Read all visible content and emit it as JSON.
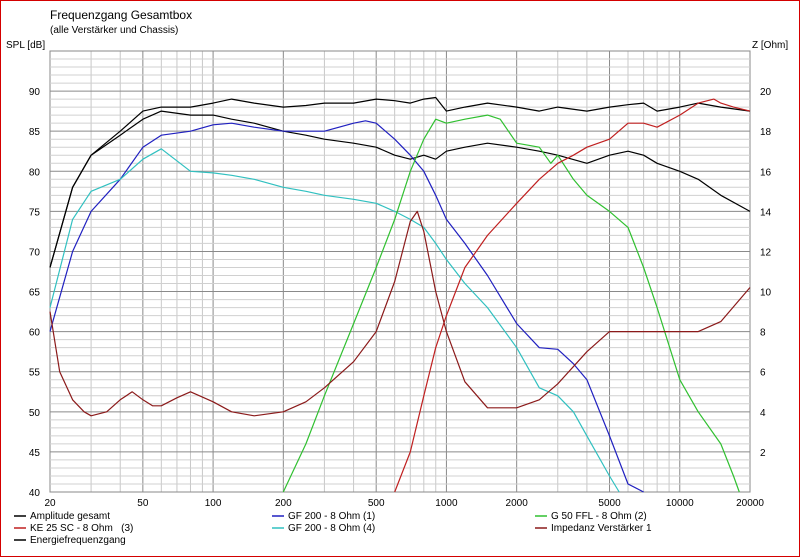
{
  "chart_data": {
    "type": "line",
    "title": "Frequenzgang Gesamtbox",
    "subtitle": "(alle Verstärker und Chassis)",
    "ylabel_left": "SPL [dB]",
    "ylabel_right": "Z [Ohm]",
    "x_scale": "log",
    "xlim": [
      20,
      20000
    ],
    "ylim_left": [
      40,
      95
    ],
    "ylim_right": [
      0,
      22
    ],
    "grid": true,
    "x_ticks": [
      20,
      50,
      100,
      200,
      500,
      1000,
      2000,
      5000,
      10000,
      20000
    ],
    "x_tick_labels": [
      "20",
      "50",
      "100",
      "200",
      "500",
      "1000",
      "2000",
      "5000",
      "10000",
      "20000"
    ],
    "y_ticks_left": [
      40,
      45,
      50,
      55,
      60,
      65,
      70,
      75,
      80,
      85,
      90
    ],
    "y_tick_labels_left": [
      "40",
      "45",
      "50",
      "55",
      "60",
      "65",
      "70",
      "75",
      "80",
      "85",
      "90"
    ],
    "y_ticks_right": [
      2,
      4,
      6,
      8,
      10,
      12,
      14,
      16,
      18,
      20
    ],
    "y_tick_labels_right": [
      "2",
      "4",
      "6",
      "8",
      "10",
      "12",
      "14",
      "16",
      "18",
      "20"
    ],
    "legend_position": "bottom",
    "series": [
      {
        "name": "Amplitude gesamt",
        "color": "#000000",
        "axis": "left",
        "x": [
          20,
          25,
          30,
          40,
          50,
          60,
          80,
          100,
          120,
          150,
          200,
          250,
          300,
          400,
          500,
          600,
          700,
          800,
          900,
          1000,
          1200,
          1500,
          2000,
          2500,
          3000,
          4000,
          5000,
          6000,
          7000,
          8000,
          10000,
          12000,
          15000,
          20000
        ],
        "y": [
          68,
          78,
          82,
          85,
          87.5,
          88,
          88,
          88.5,
          89,
          88.5,
          88,
          88.2,
          88.5,
          88.5,
          89,
          88.8,
          88.5,
          89,
          89.2,
          87.5,
          88,
          88.5,
          88,
          87.5,
          88,
          87.5,
          88,
          88.3,
          88.5,
          87.5,
          88,
          88.5,
          88,
          87.5
        ]
      },
      {
        "name": "Energiefrequenzgang",
        "color": "#000000",
        "axis": "left",
        "x": [
          20,
          25,
          30,
          40,
          50,
          60,
          80,
          100,
          120,
          150,
          200,
          250,
          300,
          400,
          500,
          600,
          700,
          800,
          900,
          1000,
          1200,
          1500,
          2000,
          2500,
          3000,
          4000,
          5000,
          6000,
          7000,
          8000,
          10000,
          12000,
          15000,
          20000
        ],
        "y": [
          68,
          78,
          82,
          84.5,
          86.5,
          87.5,
          87,
          87,
          86.5,
          86,
          85,
          84.5,
          84,
          83.5,
          83,
          82,
          81.5,
          82,
          81.5,
          82.5,
          83,
          83.5,
          83,
          82.5,
          82,
          81,
          82,
          82.5,
          82,
          81,
          80,
          79,
          77,
          75
        ]
      },
      {
        "name": "GF 200 - 8 Ohm (1)",
        "color": "#2020c0",
        "axis": "left",
        "x": [
          20,
          25,
          30,
          40,
          50,
          60,
          80,
          100,
          120,
          150,
          200,
          250,
          300,
          400,
          450,
          500,
          600,
          700,
          800,
          900,
          1000,
          1200,
          1500,
          2000,
          2500,
          3000,
          3500,
          4000,
          5000,
          6000,
          7000
        ],
        "y": [
          60,
          70,
          75,
          79,
          83,
          84.5,
          85,
          85.8,
          86,
          85.5,
          85,
          85,
          85,
          86,
          86.3,
          86,
          84,
          82,
          80,
          77,
          74,
          71,
          67,
          61,
          58,
          57.8,
          56,
          54,
          47,
          41,
          40
        ]
      },
      {
        "name": "GF 200 - 8 Ohm (4)",
        "color": "#30c0c0",
        "axis": "left",
        "x": [
          20,
          25,
          30,
          40,
          50,
          60,
          80,
          100,
          120,
          150,
          200,
          250,
          300,
          400,
          500,
          600,
          700,
          800,
          900,
          1000,
          1200,
          1500,
          2000,
          2500,
          3000,
          3500,
          4000,
          5000,
          5500
        ],
        "y": [
          63,
          74,
          77.5,
          79,
          81.5,
          82.8,
          80,
          79.8,
          79.5,
          79,
          78,
          77.5,
          77,
          76.5,
          76,
          75,
          74,
          73,
          71,
          69,
          66,
          63,
          58,
          53,
          52,
          50,
          47,
          42,
          40
        ]
      },
      {
        "name": "G 50 FFL - 8 Ohm (2)",
        "color": "#30c030",
        "axis": "left",
        "x": [
          200,
          250,
          300,
          400,
          500,
          600,
          700,
          800,
          900,
          1000,
          1200,
          1500,
          1700,
          2000,
          2500,
          2800,
          3000,
          3500,
          4000,
          5000,
          6000,
          7000,
          8000,
          10000,
          12000,
          15000,
          17000,
          18000
        ],
        "y": [
          40,
          46,
          52,
          61,
          68,
          74,
          80,
          84,
          86.5,
          86,
          86.5,
          87,
          86.5,
          83.5,
          83,
          81,
          82,
          79,
          77,
          75,
          73,
          68,
          63,
          54,
          50,
          46,
          42,
          40
        ]
      },
      {
        "name": "KE 25 SC - 8 Ohm   (3)",
        "color": "#c02020",
        "axis": "left",
        "x": [
          600,
          700,
          800,
          900,
          1000,
          1200,
          1500,
          2000,
          2500,
          3000,
          3500,
          4000,
          5000,
          6000,
          7000,
          8000,
          10000,
          12000,
          14000,
          15000,
          17000,
          20000
        ],
        "y": [
          40,
          45,
          52,
          58,
          62,
          68,
          72,
          76,
          79,
          81,
          82,
          83,
          84,
          86,
          86,
          85.5,
          87,
          88.5,
          89,
          88.5,
          88,
          87.5
        ]
      },
      {
        "name": "Impedanz Verstärker 1",
        "color": "#8b1a1a",
        "axis": "right",
        "x": [
          20,
          22,
          25,
          28,
          30,
          35,
          40,
          45,
          50,
          55,
          60,
          70,
          80,
          100,
          120,
          150,
          200,
          250,
          300,
          400,
          500,
          600,
          700,
          750,
          800,
          900,
          1000,
          1200,
          1500,
          2000,
          2500,
          3000,
          4000,
          5000,
          6000,
          7000,
          8000,
          10000,
          12000,
          15000,
          20000
        ],
        "y": [
          9,
          6,
          4.6,
          4,
          3.8,
          4,
          4.6,
          5,
          4.6,
          4.3,
          4.3,
          4.7,
          5,
          4.5,
          4,
          3.8,
          4,
          4.5,
          5.2,
          6.5,
          8,
          10.5,
          13.5,
          14,
          13,
          10,
          8,
          5.5,
          4.2,
          4.2,
          4.6,
          5.4,
          7,
          8,
          8,
          8,
          8,
          8,
          8,
          8.5,
          10.2
        ]
      }
    ]
  }
}
